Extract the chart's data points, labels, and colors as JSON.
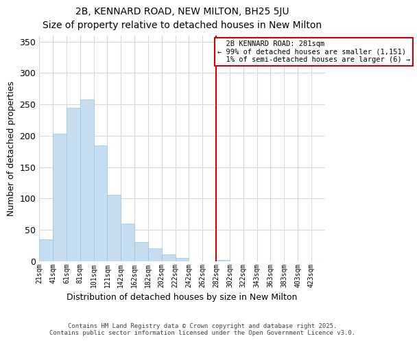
{
  "title": "2B, KENNARD ROAD, NEW MILTON, BH25 5JU",
  "subtitle": "Size of property relative to detached houses in New Milton",
  "xlabel": "Distribution of detached houses by size in New Milton",
  "ylabel": "Number of detached properties",
  "bin_labels": [
    "21sqm",
    "41sqm",
    "61sqm",
    "81sqm",
    "101sqm",
    "121sqm",
    "142sqm",
    "162sqm",
    "182sqm",
    "202sqm",
    "222sqm",
    "242sqm",
    "262sqm",
    "282sqm",
    "302sqm",
    "322sqm",
    "343sqm",
    "363sqm",
    "383sqm",
    "403sqm",
    "423sqm"
  ],
  "bar_heights": [
    35,
    203,
    245,
    258,
    185,
    106,
    60,
    30,
    20,
    10,
    5,
    0,
    0,
    2,
    0,
    0,
    0,
    0,
    0,
    0,
    0
  ],
  "bar_color": "#c6dcef",
  "bar_edge_color": "#a0c4e0",
  "vline_x": 13,
  "vline_color": "#cc0000",
  "ylim": [
    0,
    360
  ],
  "yticks": [
    0,
    50,
    100,
    150,
    200,
    250,
    300,
    350
  ],
  "annotation_title": "2B KENNARD ROAD: 281sqm",
  "annotation_line1": "← 99% of detached houses are smaller (1,151)",
  "annotation_line2": "  1% of semi-detached houses are larger (6) →",
  "annotation_box_color": "#ffffff",
  "annotation_border_color": "#cc0000",
  "footer1": "Contains HM Land Registry data © Crown copyright and database right 2025.",
  "footer2": "Contains public sector information licensed under the Open Government Licence v3.0.",
  "background_color": "#ffffff",
  "grid_color": "#d0d8e8"
}
